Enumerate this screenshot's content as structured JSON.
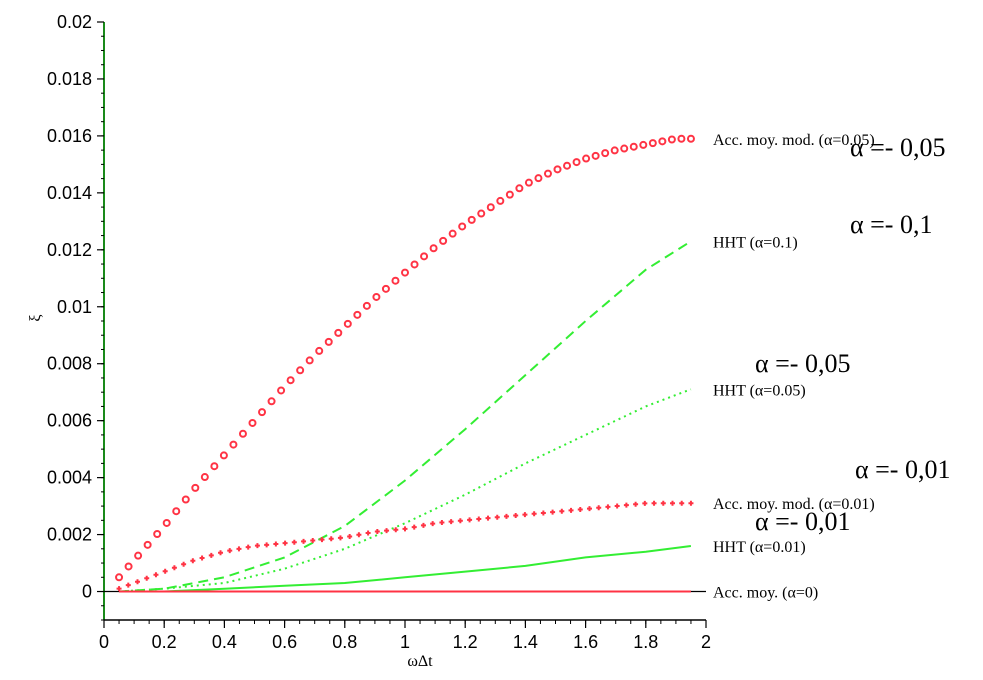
{
  "chart_data": {
    "type": "line",
    "xlabel": "ωΔt",
    "ylabel": "ξ",
    "xlim": [
      0,
      2
    ],
    "ylim": [
      -0.001,
      0.02
    ],
    "xticks": [
      "0",
      "0.2",
      "0.4",
      "0.6",
      "0.8",
      "1",
      "1.2",
      "1.4",
      "1.6",
      "1.8",
      "2"
    ],
    "yticks": [
      "0",
      "0.002",
      "0.004",
      "0.006",
      "0.008",
      "0.01",
      "0.012",
      "0.014",
      "0.016",
      "0.018",
      "0.02"
    ],
    "grid": false,
    "series": [
      {
        "name": "Acc. moy. mod. (α=0.05)",
        "overlay": "α =- 0,05",
        "color": "#ff3344",
        "style": "circles",
        "x": [
          0.05,
          0.1,
          0.2,
          0.3,
          0.4,
          0.5,
          0.6,
          0.7,
          0.8,
          0.9,
          1.0,
          1.1,
          1.2,
          1.3,
          1.4,
          1.5,
          1.6,
          1.7,
          1.8,
          1.9,
          1.95
        ],
        "y": [
          0.0005,
          0.0011,
          0.0023,
          0.0036,
          0.0048,
          0.006,
          0.0072,
          0.0083,
          0.0093,
          0.0103,
          0.0112,
          0.0121,
          0.0129,
          0.0136,
          0.0143,
          0.0148,
          0.0152,
          0.0155,
          0.0157,
          0.0159,
          0.0159
        ]
      },
      {
        "name": "HHT (α=0.1)",
        "overlay": "α =- 0,1",
        "color": "#33ee33",
        "style": "dashed",
        "x": [
          0.05,
          0.2,
          0.4,
          0.6,
          0.8,
          1.0,
          1.2,
          1.4,
          1.6,
          1.8,
          1.95
        ],
        "y": [
          0.0,
          0.0001,
          0.0005,
          0.0012,
          0.0023,
          0.0039,
          0.0057,
          0.0076,
          0.0095,
          0.0113,
          0.0123
        ]
      },
      {
        "name": "HHT (α=0.05)",
        "overlay": "α =- 0,05",
        "color": "#33ee33",
        "style": "dotted",
        "x": [
          0.05,
          0.2,
          0.4,
          0.6,
          0.8,
          1.0,
          1.2,
          1.4,
          1.6,
          1.8,
          1.95
        ],
        "y": [
          0.0,
          0.0001,
          0.0003,
          0.0008,
          0.0015,
          0.0024,
          0.0034,
          0.0045,
          0.0055,
          0.0065,
          0.0071
        ]
      },
      {
        "name": "Acc. moy. mod. (α=0.01)",
        "overlay": "α =- 0,01",
        "color": "#ff3344",
        "style": "crosses",
        "x": [
          0.05,
          0.1,
          0.2,
          0.3,
          0.4,
          0.5,
          0.6,
          0.7,
          0.8,
          0.9,
          1.0,
          1.1,
          1.2,
          1.3,
          1.4,
          1.5,
          1.6,
          1.7,
          1.8,
          1.9,
          1.95
        ],
        "y": [
          0.0001,
          0.0003,
          0.0007,
          0.0011,
          0.0014,
          0.0016,
          0.0017,
          0.0018,
          0.0019,
          0.0021,
          0.0022,
          0.0024,
          0.0025,
          0.0026,
          0.0027,
          0.0028,
          0.0029,
          0.003,
          0.0031,
          0.0031,
          0.0031
        ]
      },
      {
        "name": "HHT (α=0.01)",
        "overlay": "α =- 0,01",
        "color": "#33ee33",
        "style": "solid",
        "x": [
          0.05,
          0.2,
          0.4,
          0.6,
          0.8,
          1.0,
          1.2,
          1.4,
          1.6,
          1.8,
          1.95
        ],
        "y": [
          0.0,
          0.0,
          0.0001,
          0.0002,
          0.0003,
          0.0005,
          0.0007,
          0.0009,
          0.0012,
          0.0014,
          0.0016
        ]
      },
      {
        "name": "Acc. moy. (α=0)",
        "overlay": "",
        "color": "#ff3344",
        "style": "solid",
        "x": [
          0.05,
          1.95
        ],
        "y": [
          0.0,
          0.0
        ]
      }
    ]
  }
}
